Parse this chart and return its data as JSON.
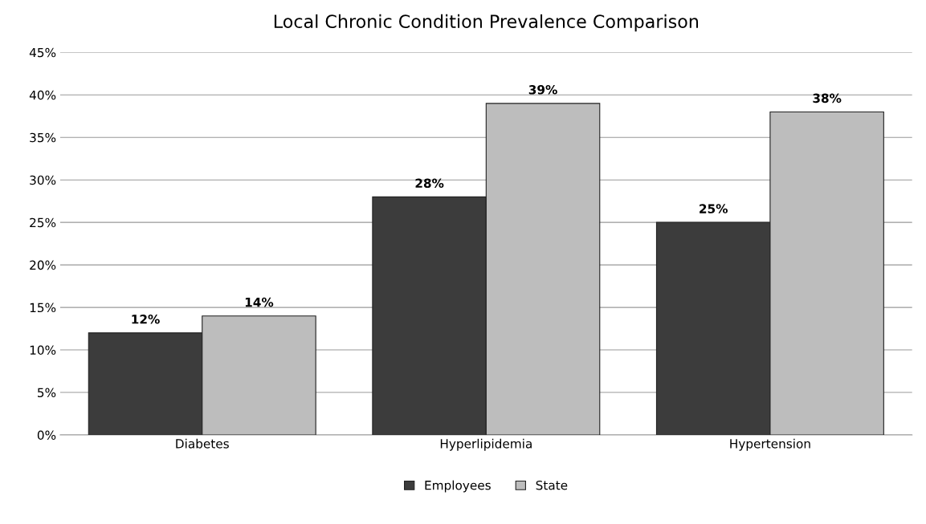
{
  "chart_data": {
    "type": "bar",
    "title": "Local Chronic Condition Prevalence Comparison",
    "categories": [
      "Diabetes",
      "Hyperlipidemia",
      "Hypertension"
    ],
    "series": [
      {
        "name": "Employees",
        "color": "#3c3c3c",
        "values": [
          12,
          28,
          25
        ],
        "value_labels": [
          "12%",
          "28%",
          "25%"
        ]
      },
      {
        "name": "State",
        "color": "#bdbdbd",
        "values": [
          14,
          39,
          38
        ],
        "value_labels": [
          "14%",
          "39%",
          "38%"
        ]
      }
    ],
    "ylim": [
      0,
      45
    ],
    "yticks": [
      {
        "value": 0,
        "label": "0%"
      },
      {
        "value": 5,
        "label": "5%"
      },
      {
        "value": 10,
        "label": "10%"
      },
      {
        "value": 15,
        "label": "15%"
      },
      {
        "value": 20,
        "label": "20%"
      },
      {
        "value": 25,
        "label": "25%"
      },
      {
        "value": 30,
        "label": "30%"
      },
      {
        "value": 35,
        "label": "35%"
      },
      {
        "value": 40,
        "label": "40%"
      },
      {
        "value": 45,
        "label": "45%"
      }
    ],
    "grid": "y",
    "legend": "bottom"
  }
}
